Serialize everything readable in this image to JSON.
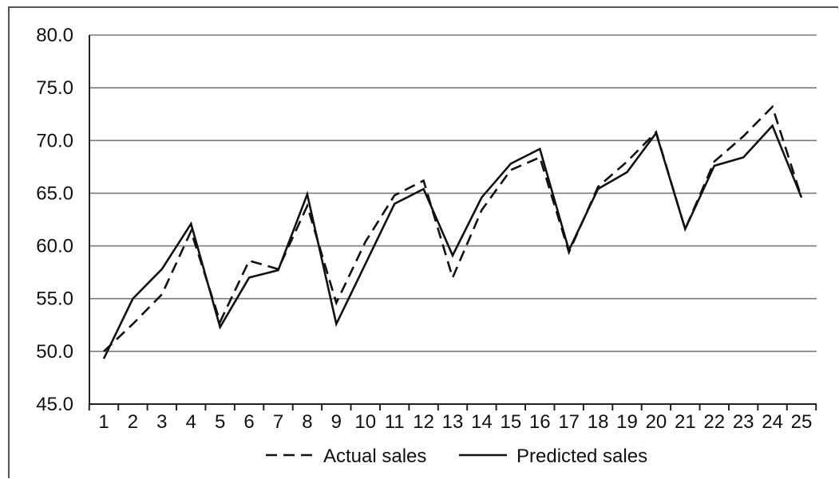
{
  "chart_data": {
    "type": "line",
    "title": "",
    "xlabel": "",
    "ylabel": "",
    "x": [
      1,
      2,
      3,
      4,
      5,
      6,
      7,
      8,
      9,
      10,
      11,
      12,
      13,
      14,
      15,
      16,
      17,
      18,
      19,
      20,
      21,
      22,
      23,
      24,
      25
    ],
    "x_tick_labels": [
      "1",
      "2",
      "3",
      "4",
      "5",
      "6",
      "7",
      "8",
      "9",
      "10",
      "11",
      "12",
      "13",
      "14",
      "15",
      "16",
      "17",
      "18",
      "19",
      "20",
      "21",
      "22",
      "23",
      "24",
      "25"
    ],
    "ylim": [
      45.0,
      80.0
    ],
    "y_ticks": [
      45.0,
      50.0,
      55.0,
      60.0,
      65.0,
      70.0,
      75.0,
      80.0
    ],
    "y_tick_labels": [
      "45.0",
      "50.0",
      "55.0",
      "60.0",
      "65.0",
      "70.0",
      "75.0",
      "80.0"
    ],
    "grid": "horizontal",
    "legend_position": "bottom",
    "series": [
      {
        "name": "Actual sales",
        "style": "dashed",
        "color": "#111111",
        "values": [
          50.0,
          52.6,
          55.4,
          61.4,
          52.8,
          58.6,
          57.8,
          63.8,
          54.6,
          60.4,
          64.8,
          66.2,
          57.0,
          63.4,
          67.2,
          68.4,
          59.4,
          65.6,
          68.0,
          70.8,
          61.6,
          68.0,
          70.4,
          73.2,
          64.6
        ]
      },
      {
        "name": "Predicted sales",
        "style": "solid",
        "color": "#111111",
        "values": [
          49.3,
          55.0,
          57.8,
          62.1,
          52.3,
          57.0,
          57.7,
          64.9,
          52.6,
          58.3,
          64.0,
          65.4,
          59.1,
          64.6,
          67.8,
          69.2,
          59.6,
          65.4,
          67.0,
          70.7,
          61.6,
          67.6,
          68.4,
          71.4,
          64.6
        ]
      }
    ]
  }
}
